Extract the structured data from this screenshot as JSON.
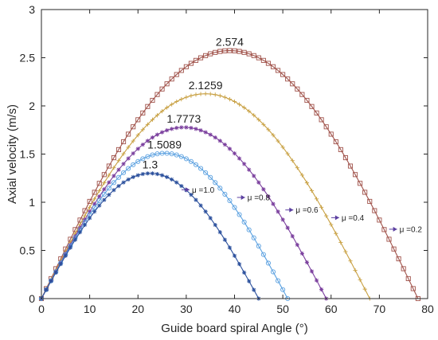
{
  "chart_data": {
    "type": "line",
    "xlabel": "Guide board spiral Angle (°)",
    "ylabel": "Axial velocity (m/s)",
    "xlim": [
      0,
      80
    ],
    "ylim": [
      0,
      3
    ],
    "xticks": [
      "0",
      "10",
      "20",
      "30",
      "40",
      "50",
      "60",
      "70",
      "80"
    ],
    "yticks": [
      "0",
      "0.5",
      "1",
      "1.5",
      "2",
      "2.5",
      "3"
    ],
    "grid": false,
    "legend": "none",
    "series": [
      {
        "name": "μ =0.2",
        "peak_x": 39.0,
        "peak_y": 2.574,
        "zero_x": 78.0,
        "peak_label": "2.574",
        "color": "#a0524a",
        "marker": "square"
      },
      {
        "name": "μ =0.4",
        "peak_x": 34.0,
        "peak_y": 2.1259,
        "zero_x": 68.0,
        "peak_label": "2.1259",
        "color": "#c8a042",
        "marker": "plus"
      },
      {
        "name": "μ =0.6",
        "peak_x": 29.5,
        "peak_y": 1.7773,
        "zero_x": 59.0,
        "peak_label": "1.7773",
        "color": "#7a3e9d",
        "marker": "star"
      },
      {
        "name": "μ =0.8",
        "peak_x": 25.5,
        "peak_y": 1.5089,
        "zero_x": 51.0,
        "peak_label": "1.5089",
        "color": "#5aa0e0",
        "marker": "circle"
      },
      {
        "name": "μ =1.0",
        "peak_x": 22.5,
        "peak_y": 1.3,
        "zero_x": 45.0,
        "peak_label": "1.3",
        "color": "#2a4f9c",
        "marker": "star"
      }
    ],
    "annotations": [
      {
        "text": "μ =0.2",
        "x": 74.0,
        "y": 0.72
      },
      {
        "text": "μ =0.4",
        "x": 62.0,
        "y": 0.84
      },
      {
        "text": "μ =0.6",
        "x": 52.5,
        "y": 0.92
      },
      {
        "text": "μ =0.8",
        "x": 42.5,
        "y": 1.05
      },
      {
        "text": "μ =1.0",
        "x": 31.0,
        "y": 1.13
      }
    ]
  }
}
